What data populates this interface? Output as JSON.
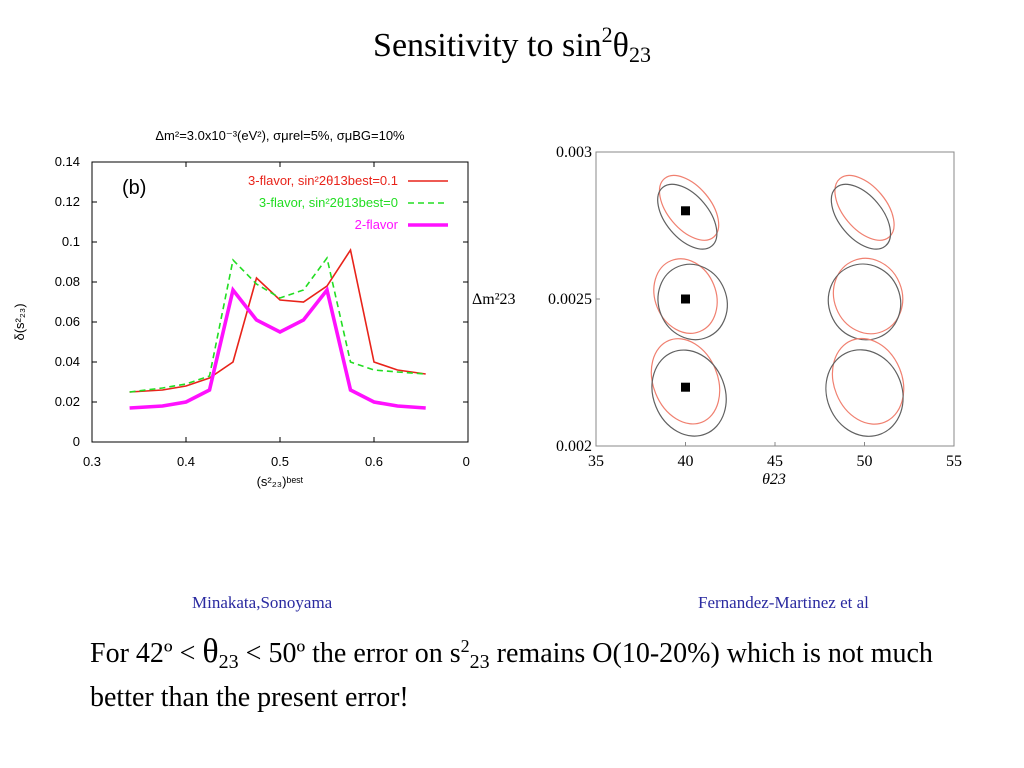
{
  "slide": {
    "title_prefix": "Sensitivity to sin",
    "title_sup": "2",
    "title_theta": "θ",
    "title_sub": "23"
  },
  "credits": {
    "left": "Minakata,Sonoyama",
    "right": "Fernandez-Martinez et al"
  },
  "body": {
    "part1": "For 42º < ",
    "theta": "θ",
    "sub1": "23",
    "part2": " < 50º the error on s",
    "sup2": "2",
    "sub2": "23",
    "part3": "  remains O(10-20%) which is not much better than the present error!"
  },
  "chart_data": [
    {
      "type": "line",
      "header": "Δm²=3.0x10⁻³(eV²), σμrel=5%, σμBG=10%",
      "panel_label": "(b)",
      "xlabel": "(s²₂₃)ᵇᵉˢᵗ",
      "ylabel": "δ(s²₂₃)",
      "xlim": [
        0.3,
        0.7
      ],
      "ylim": [
        0,
        0.14
      ],
      "xticks": [
        "0.3",
        "0.4",
        "0.5",
        "0.6",
        "0."
      ],
      "yticks": [
        "0",
        "0.02",
        "0.04",
        "0.06",
        "0.08",
        "0.1",
        "0.12",
        "0.14"
      ],
      "legend_position": "top-right",
      "grid": false,
      "series": [
        {
          "name": "3-flavor, sin²2θ13best=0.1",
          "color": "#e8231a",
          "style": "solid",
          "x": [
            0.34,
            0.375,
            0.4,
            0.425,
            0.45,
            0.475,
            0.5,
            0.525,
            0.55,
            0.575,
            0.6,
            0.625,
            0.655
          ],
          "y": [
            0.025,
            0.026,
            0.028,
            0.032,
            0.04,
            0.082,
            0.071,
            0.07,
            0.078,
            0.096,
            0.04,
            0.036,
            0.034
          ]
        },
        {
          "name": "3-flavor, sin²2θ13best=0",
          "color": "#22dd22",
          "style": "dashed",
          "x": [
            0.34,
            0.375,
            0.4,
            0.425,
            0.45,
            0.475,
            0.5,
            0.525,
            0.55,
            0.575,
            0.6,
            0.625,
            0.655
          ],
          "y": [
            0.025,
            0.027,
            0.029,
            0.033,
            0.091,
            0.079,
            0.072,
            0.076,
            0.092,
            0.04,
            0.036,
            0.035,
            0.034
          ]
        },
        {
          "name": "2-flavor",
          "color": "#ff11ff",
          "style": "thick",
          "x": [
            0.34,
            0.375,
            0.4,
            0.425,
            0.45,
            0.475,
            0.5,
            0.525,
            0.55,
            0.575,
            0.6,
            0.625,
            0.655
          ],
          "y": [
            0.017,
            0.018,
            0.02,
            0.026,
            0.076,
            0.061,
            0.055,
            0.061,
            0.076,
            0.026,
            0.02,
            0.018,
            0.017
          ]
        }
      ]
    },
    {
      "type": "scatter",
      "xlabel": "θ23",
      "ylabel": "Δm²23",
      "xlim": [
        35,
        55
      ],
      "ylim": [
        0.002,
        0.003
      ],
      "xticks": [
        "35",
        "40",
        "45",
        "50",
        "55"
      ],
      "yticks": [
        "0.002",
        "0.0025",
        "0.003"
      ],
      "grid": false,
      "best_fit_points": [
        {
          "x": 40,
          "y": 0.0028
        },
        {
          "x": 40,
          "y": 0.0025
        },
        {
          "x": 40,
          "y": 0.0022
        }
      ],
      "contours": [
        {
          "color": "#f08070",
          "cx": 40.2,
          "cy": 0.00281,
          "rx": 1.2,
          "ry": 0.00013,
          "tilt": -40
        },
        {
          "color": "#606060",
          "cx": 40.1,
          "cy": 0.00278,
          "rx": 1.2,
          "ry": 0.00013,
          "tilt": -40
        },
        {
          "color": "#f08070",
          "cx": 50.0,
          "cy": 0.00281,
          "rx": 1.2,
          "ry": 0.00013,
          "tilt": -40
        },
        {
          "color": "#606060",
          "cx": 49.8,
          "cy": 0.00278,
          "rx": 1.2,
          "ry": 0.00013,
          "tilt": -40
        },
        {
          "color": "#f08070",
          "cx": 40.0,
          "cy": 0.00251,
          "rx": 1.7,
          "ry": 0.00013,
          "tilt": -22
        },
        {
          "color": "#606060",
          "cx": 40.4,
          "cy": 0.00249,
          "rx": 1.9,
          "ry": 0.00013,
          "tilt": -22
        },
        {
          "color": "#f08070",
          "cx": 50.2,
          "cy": 0.00251,
          "rx": 1.9,
          "ry": 0.00013,
          "tilt": -22
        },
        {
          "color": "#606060",
          "cx": 50.0,
          "cy": 0.00249,
          "rx": 2.0,
          "ry": 0.00013,
          "tilt": -22
        },
        {
          "color": "#f08070",
          "cx": 40.0,
          "cy": 0.00222,
          "rx": 1.8,
          "ry": 0.00015,
          "tilt": -22
        },
        {
          "color": "#606060",
          "cx": 40.2,
          "cy": 0.00218,
          "rx": 2.0,
          "ry": 0.00015,
          "tilt": -22
        },
        {
          "color": "#f08070",
          "cx": 50.2,
          "cy": 0.00222,
          "rx": 1.9,
          "ry": 0.00015,
          "tilt": -22
        },
        {
          "color": "#606060",
          "cx": 50.0,
          "cy": 0.00218,
          "rx": 2.1,
          "ry": 0.00015,
          "tilt": -22
        }
      ]
    }
  ]
}
